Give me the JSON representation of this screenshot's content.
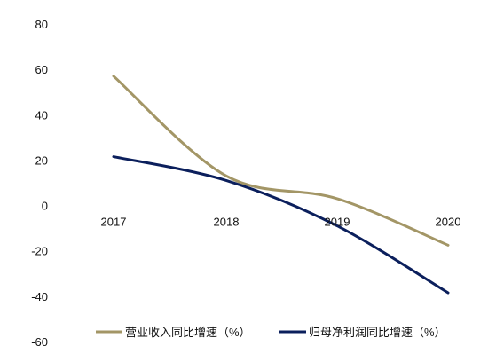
{
  "chart_data": {
    "type": "line",
    "categories": [
      "2017",
      "2018",
      "2019",
      "2020"
    ],
    "series": [
      {
        "name": "营业收入同比增速（%）",
        "values": [
          57,
          13,
          3,
          -17.5
        ],
        "color": "#A39666"
      },
      {
        "name": "归母净利润同比增速（%）",
        "values": [
          21.5,
          11,
          -9,
          -38.5
        ],
        "color": "#0B1F5C"
      }
    ],
    "yticks": [
      80,
      60,
      40,
      20,
      0,
      -20,
      -40,
      -60
    ],
    "ylim": [
      -60,
      80
    ],
    "grid": false,
    "smooth": true,
    "legend_position": "bottom"
  }
}
